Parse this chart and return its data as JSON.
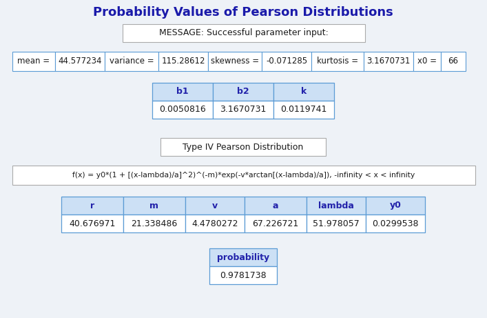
{
  "title": "Probability Values of Pearson Distributions",
  "title_color": "#1a1aaa",
  "background_color": "#eef2f7",
  "message": "MESSAGE: Successful parameter input:",
  "b_headers": [
    "b1",
    "b2",
    "k"
  ],
  "b_values": [
    "0.0050816",
    "3.1670731",
    "0.0119741"
  ],
  "type_label": "Type IV Pearson Distribution",
  "formula": "f(x) = y0*(1 + [(x-lambda)/a]^2)^(-m)*exp(-v*arctan[(x-lambda)/a]), -infinity < x < infinity",
  "params_headers": [
    "r",
    "m",
    "v",
    "a",
    "lambda",
    "y0"
  ],
  "params_values": [
    "40.676971",
    "21.338486",
    "4.4780272",
    "67.226721",
    "51.978057",
    "0.0299538"
  ],
  "prob_header": "probability",
  "prob_value": "0.9781738",
  "stats_cells": [
    "mean =",
    "44.577234",
    "variance =",
    "115.28612",
    "skewness =",
    "-0.071285",
    "kurtosis =",
    "3.1670731",
    "x0 =",
    "66"
  ],
  "table_header_bg": "#cce0f5",
  "table_border_color": "#5b9bd5",
  "text_color": "#1a1a1a",
  "header_text_color": "#2222aa",
  "box_border_color": "#aaaaaa",
  "title_fontsize": 13,
  "body_fontsize": 9,
  "small_fontsize": 8.5
}
